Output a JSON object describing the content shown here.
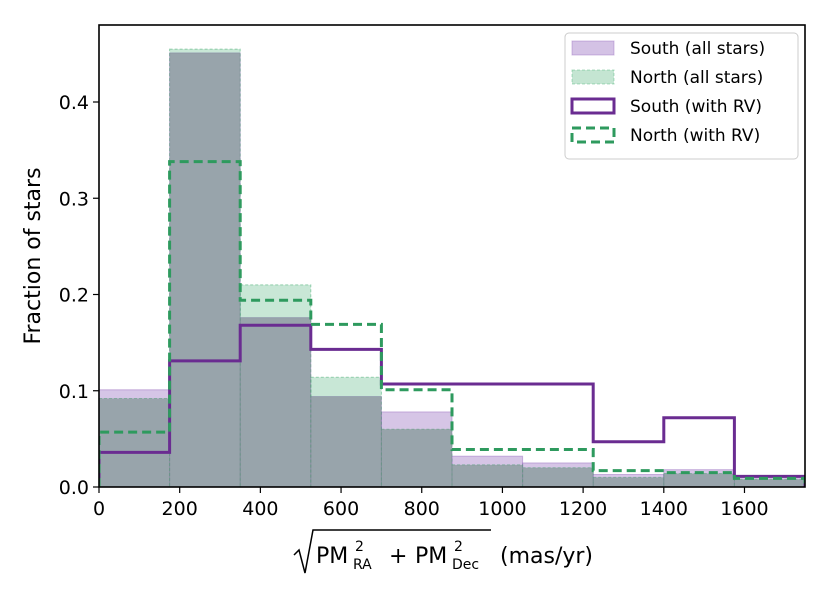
{
  "chart_data": {
    "type": "histogram",
    "xlabel": {
      "pm_ra": "PM",
      "ra_sub": "RA",
      "plus": "+",
      "pm_dec": "PM",
      "dec_sub": "Dec",
      "sup": "2",
      "unit": "(mas/yr)"
    },
    "ylabel": "Fraction of stars",
    "xlim": [
      0,
      1750
    ],
    "ylim": [
      0,
      0.48
    ],
    "x_ticks": [
      0,
      200,
      400,
      600,
      800,
      1000,
      1200,
      1400,
      1600
    ],
    "y_ticks": [
      0.0,
      0.1,
      0.2,
      0.3,
      0.4
    ],
    "y_tick_labels": [
      "0.0",
      "0.1",
      "0.2",
      "0.3",
      "0.4"
    ],
    "bin_edges": [
      0,
      175,
      350,
      525,
      700,
      875,
      1050,
      1225,
      1400,
      1575,
      1750
    ],
    "legend_position": "top-right",
    "series": [
      {
        "name": "South (all stars)",
        "style": "filled",
        "color": "#9467bd",
        "values": [
          0.101,
          0.451,
          0.176,
          0.094,
          0.078,
          0.032,
          0.025,
          0.013,
          0.018,
          0.012
        ]
      },
      {
        "name": "North (all stars)",
        "style": "filled-dashed",
        "color": "#2ca25f",
        "values": [
          0.092,
          0.455,
          0.21,
          0.114,
          0.06,
          0.023,
          0.02,
          0.01,
          0.014,
          0.008
        ]
      },
      {
        "name": "South (with RV)",
        "style": "step-solid",
        "color": "#6a2c91",
        "values": [
          0.036,
          0.131,
          0.168,
          0.143,
          0.107,
          0.107,
          0.107,
          0.047,
          0.072,
          0.011
        ]
      },
      {
        "name": "North (with RV)",
        "style": "step-dashed",
        "color": "#2e9a5e",
        "values": [
          0.057,
          0.338,
          0.194,
          0.169,
          0.101,
          0.039,
          0.039,
          0.017,
          0.015,
          0.009
        ]
      }
    ]
  }
}
